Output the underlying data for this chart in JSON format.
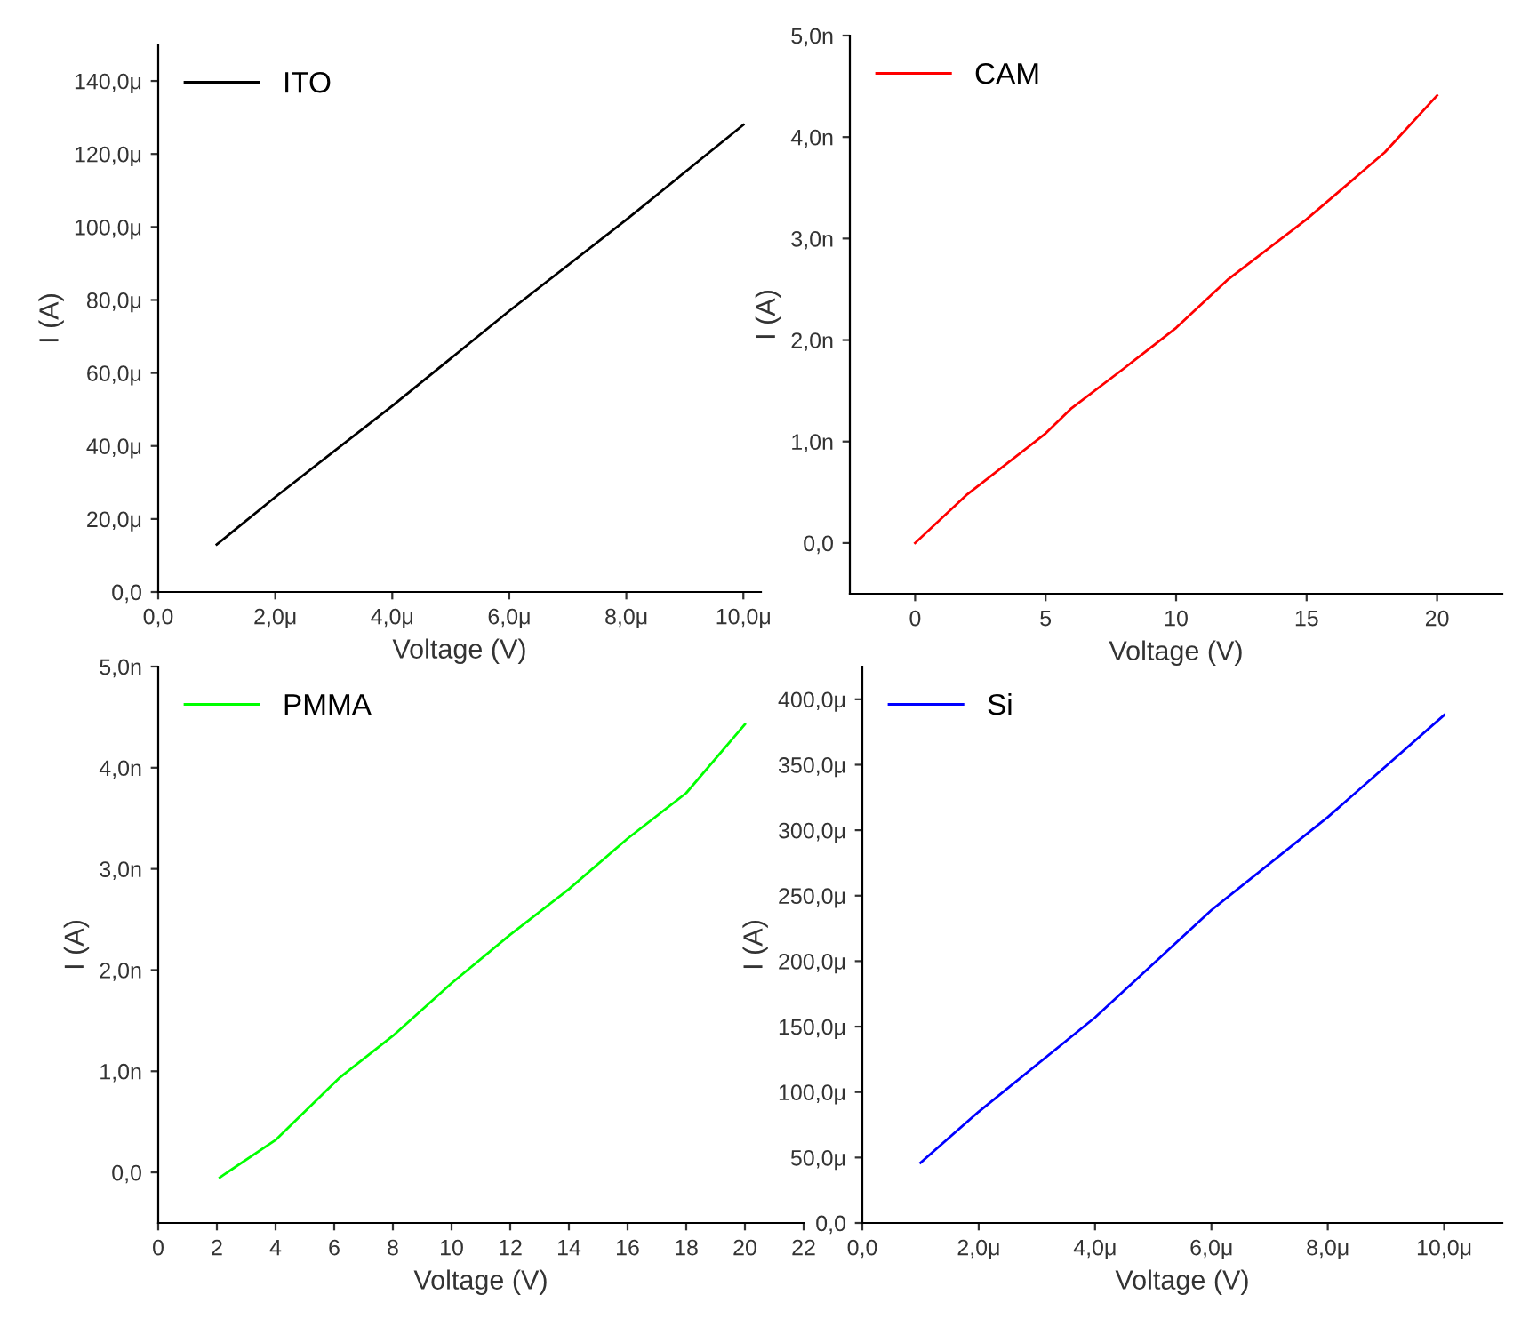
{
  "chart_data": [
    {
      "type": "line",
      "xlabel": "Voltage (V)",
      "ylabel": "I (A)",
      "legend": "top left",
      "xlim": [
        0,
        10.3
      ],
      "ylim": [
        0,
        150
      ],
      "xticks": [
        {
          "value": 0,
          "label": "0,0"
        },
        {
          "value": 2,
          "label": "2,0μ"
        },
        {
          "value": 4,
          "label": "4,0μ"
        },
        {
          "value": 6,
          "label": "6,0μ"
        },
        {
          "value": 8,
          "label": "8,0μ"
        },
        {
          "value": 10,
          "label": "10,0μ"
        }
      ],
      "yticks": [
        {
          "value": 0,
          "label": "0,0"
        },
        {
          "value": 20,
          "label": "20,0μ"
        },
        {
          "value": 40,
          "label": "40,0μ"
        },
        {
          "value": 60,
          "label": "60,0μ"
        },
        {
          "value": 80,
          "label": "80,0μ"
        },
        {
          "value": 100,
          "label": "100,0μ"
        },
        {
          "value": 120,
          "label": "120,0μ"
        },
        {
          "value": 140,
          "label": "140,0μ"
        }
      ],
      "series": [
        {
          "name": "ITO",
          "color": "#000000",
          "x": [
            1,
            2,
            4,
            6,
            8,
            10
          ],
          "values": [
            13,
            26,
            51,
            77,
            102,
            128
          ]
        }
      ]
    },
    {
      "type": "line",
      "xlabel": "Voltage (V)",
      "ylabel": "I (A)",
      "legend": "top left",
      "xlim": [
        -2.5,
        22.5
      ],
      "ylim": [
        -0.5,
        5
      ],
      "xticks": [
        0,
        5,
        10,
        15,
        20
      ],
      "yticks": [
        {
          "value": 0,
          "label": "0,0"
        },
        {
          "value": 1,
          "label": "1,0n"
        },
        {
          "value": 2,
          "label": "2,0n"
        },
        {
          "value": 3,
          "label": "3,0n"
        },
        {
          "value": 4,
          "label": "4,0n"
        },
        {
          "value": 5,
          "label": "5,0n"
        }
      ],
      "series": [
        {
          "name": "CAM",
          "color": "#ff0000",
          "x": [
            0,
            2,
            5,
            6,
            8,
            10,
            12,
            15,
            18,
            20
          ],
          "values": [
            0,
            0.48,
            1.08,
            1.33,
            1.72,
            2.12,
            2.6,
            3.19,
            3.85,
            4.41
          ]
        }
      ]
    },
    {
      "type": "line",
      "xlabel": "Voltage (V)",
      "ylabel": "I (A)",
      "legend": "top left",
      "xlim": [
        0,
        22
      ],
      "ylim": [
        -0.5,
        5
      ],
      "xticks": [
        0,
        2,
        4,
        6,
        8,
        10,
        12,
        14,
        16,
        18,
        20,
        22
      ],
      "yticks": [
        {
          "value": 0,
          "label": "0,0"
        },
        {
          "value": 1,
          "label": "1,0n"
        },
        {
          "value": 2,
          "label": "2,0n"
        },
        {
          "value": 3,
          "label": "3,0n"
        },
        {
          "value": 4,
          "label": "4,0n"
        },
        {
          "value": 5,
          "label": "5,0n"
        }
      ],
      "series": [
        {
          "name": "PMMA",
          "color": "#00ff00",
          "x": [
            2.1,
            4,
            6.2,
            8,
            10,
            12,
            14,
            16,
            18,
            20
          ],
          "values": [
            -0.05,
            0.32,
            0.94,
            1.35,
            1.87,
            2.35,
            2.8,
            3.3,
            3.75,
            4.43
          ]
        }
      ]
    },
    {
      "type": "line",
      "xlabel": "Voltage (V)",
      "ylabel": "I (A)",
      "legend": "top left",
      "xlim": [
        0,
        11
      ],
      "ylim": [
        0,
        425
      ],
      "xticks": [
        {
          "value": 0,
          "label": "0,0"
        },
        {
          "value": 2,
          "label": "2,0μ"
        },
        {
          "value": 4,
          "label": "4,0μ"
        },
        {
          "value": 6,
          "label": "6,0μ"
        },
        {
          "value": 8,
          "label": "8,0μ"
        },
        {
          "value": 10,
          "label": "10,0μ"
        }
      ],
      "yticks": [
        {
          "value": 0,
          "label": "0,0"
        },
        {
          "value": 50,
          "label": "50,0μ"
        },
        {
          "value": 100,
          "label": "100,0μ"
        },
        {
          "value": 150,
          "label": "150,0μ"
        },
        {
          "value": 200,
          "label": "200,0μ"
        },
        {
          "value": 250,
          "label": "250,0μ"
        },
        {
          "value": 300,
          "label": "300,0μ"
        },
        {
          "value": 350,
          "label": "350,0μ"
        },
        {
          "value": 400,
          "label": "400,0μ"
        }
      ],
      "series": [
        {
          "name": "Si",
          "color": "#0000ff",
          "x": [
            1,
            2,
            4,
            6,
            8,
            10
          ],
          "values": [
            46,
            85,
            157,
            239,
            310,
            388
          ]
        }
      ]
    }
  ]
}
